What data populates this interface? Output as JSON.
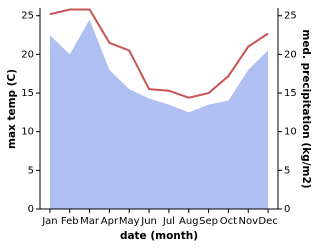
{
  "chart_data": {
    "type": "line-area",
    "xlabel": "date (month)",
    "ylabel": "max temp (C)",
    "y2label": "med. precipitation (kg/m2)",
    "categories": [
      "Jan",
      "Feb",
      "Mar",
      "Apr",
      "May",
      "Jun",
      "Jul",
      "Aug",
      "Sep",
      "Oct",
      "Nov",
      "Dec"
    ],
    "series": [
      {
        "name": "med. precipitation",
        "kind": "area",
        "axis": "y2",
        "color": "#b0bff2",
        "values": [
          22.5,
          20.0,
          24.5,
          18.0,
          15.5,
          14.3,
          13.5,
          12.5,
          13.5,
          14.0,
          18.0,
          20.5
        ]
      },
      {
        "name": "max temp",
        "kind": "line",
        "axis": "y",
        "color": "#c85454",
        "values": [
          25.2,
          25.8,
          25.8,
          21.5,
          20.5,
          15.5,
          15.3,
          14.4,
          15.0,
          17.2,
          21.0,
          22.7
        ]
      }
    ],
    "ylim": [
      0,
      26
    ],
    "yticks": [
      0,
      5,
      10,
      15,
      20,
      25
    ],
    "y2lim": [
      0,
      26
    ],
    "y2ticks": [
      0,
      5,
      10,
      15,
      20,
      25
    ]
  }
}
